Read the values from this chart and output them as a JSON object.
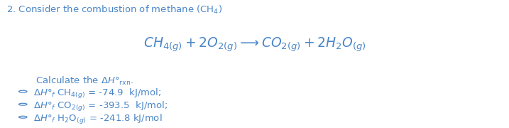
{
  "background_color": "#ffffff",
  "text_color": "#4a86c8",
  "title": "2. Consider the combustion of methane (CH$_4$)",
  "eq_str": "$\\mathit{CH}_{4(g)} + 2\\mathit{O}_{2(g)} \\longrightarrow \\mathit{CO}_{2(g)} + 2\\mathit{H_2O}_{(g)}$",
  "calc_str": "Calculate the $\\Delta H°_{\\mathrm{rxn}}$.",
  "bullet1": "$\\Delta H°_f$ CH$_{4(g)}$ = -74.9  kJ/mol;",
  "bullet2": "$\\Delta H°_f$ CO$_{2(g)}$ = -393.5  kJ/mol;",
  "bullet3": "$\\Delta H°_f$ H$_2$O$_{(g)}$ = -241.8 kJ/mol",
  "fs_title": 9.5,
  "fs_eq": 13.5,
  "fs_body": 9.5
}
